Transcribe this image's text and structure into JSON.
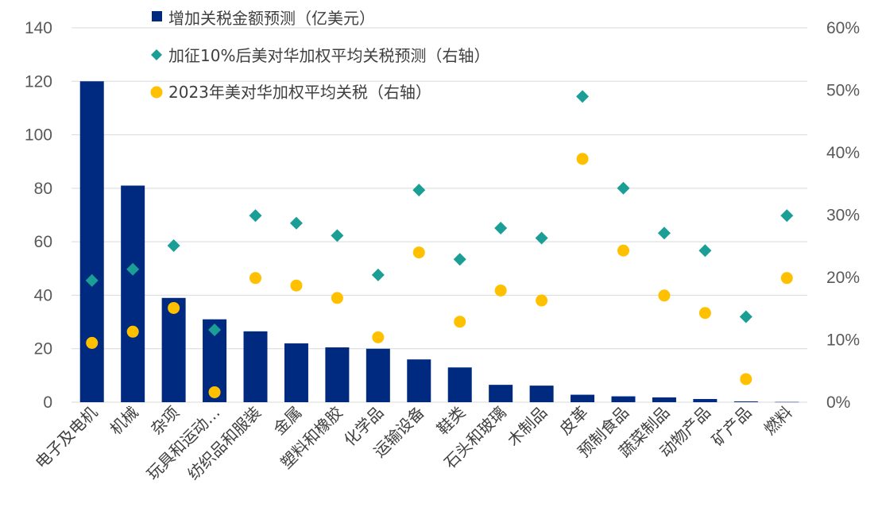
{
  "chart_data": {
    "type": "bar+scatter",
    "categories": [
      "电子及电机",
      "机械",
      "杂项",
      "玩具和运动…",
      "纺织品和服装",
      "金属",
      "塑料和橡胶",
      "化学品",
      "运输设备",
      "鞋类",
      "石头和玻璃",
      "木制品",
      "皮革",
      "预制食品",
      "蔬菜制品",
      "动物产品",
      "矿产品",
      "燃料"
    ],
    "series": [
      {
        "name": "增加关税金额预测（亿美元）",
        "kind": "bar",
        "axis": "left",
        "color": "#002a7f",
        "values": [
          120,
          81,
          39,
          31,
          26.5,
          22,
          20.5,
          20,
          16,
          13,
          6.5,
          6.2,
          2.8,
          2.2,
          1.8,
          1.2,
          0.3,
          0.1
        ]
      },
      {
        "name": "加征10%后美对华加权平均关税预测（右轴）",
        "kind": "scatter-diamond",
        "axis": "right",
        "color": "#1a9e96",
        "values": [
          19.5,
          21.3,
          25.1,
          11.6,
          29.9,
          28.7,
          26.7,
          20.4,
          34.0,
          22.9,
          27.9,
          26.3,
          49.0,
          34.3,
          27.1,
          24.3,
          13.7,
          29.9
        ]
      },
      {
        "name": "2023年美对华加权平均关税（右轴）",
        "kind": "scatter-circle",
        "axis": "right",
        "color": "#ffc000",
        "values": [
          9.5,
          11.3,
          15.1,
          1.6,
          19.9,
          18.7,
          16.7,
          10.4,
          24.0,
          12.9,
          17.9,
          16.3,
          39.0,
          24.3,
          17.1,
          14.3,
          3.7,
          19.9
        ]
      }
    ],
    "y_left": {
      "min": 0,
      "max": 140,
      "ticks": [
        "0",
        "20",
        "40",
        "60",
        "80",
        "100",
        "120",
        "140"
      ]
    },
    "y_right": {
      "min": 0,
      "max": 60,
      "ticks": [
        "0%",
        "10%",
        "20%",
        "30%",
        "40%",
        "50%",
        "60%"
      ]
    },
    "grid": true,
    "legend_position": "top-center"
  }
}
